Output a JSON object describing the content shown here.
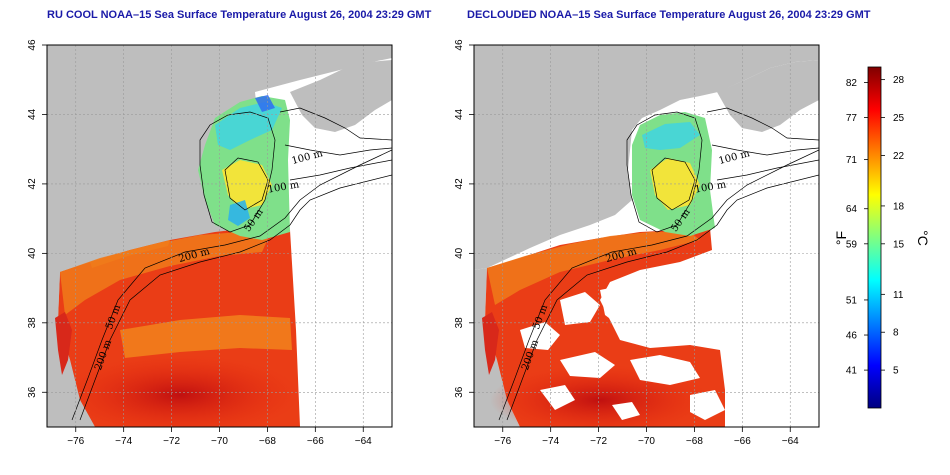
{
  "maps": [
    {
      "title": "RU COOL NOAA–15 Sea Surface Temperature August 26, 2004 23:29 GMT",
      "variant": "full"
    },
    {
      "title": "DECLOUDED NOAA–15 Sea Surface Temperature August 26, 2004 23:29 GMT",
      "variant": "declouded"
    }
  ],
  "axes": {
    "lon_ticks": [
      "−76",
      "−74",
      "−72",
      "−70",
      "−68",
      "−66",
      "−64"
    ],
    "lat_ticks": [
      "46",
      "44",
      "42",
      "40",
      "38",
      "36"
    ],
    "lon_range": [
      -77.2,
      -62.8
    ],
    "lat_range": [
      35.0,
      46.0
    ]
  },
  "contour_labels": {
    "map1": [
      "100 m",
      "100 m",
      "50 m",
      "200 m",
      "50 m",
      "200 m"
    ],
    "map2": [
      "100 m",
      "100 m",
      "50 m",
      "200 m",
      "50 m",
      "200 m"
    ]
  },
  "colorbar": {
    "unit_left": "°F",
    "unit_right": "°C",
    "fahrenheit_ticks": [
      "82",
      "77",
      "71",
      "64",
      "59",
      "51",
      "46",
      "41"
    ],
    "celsius_ticks": [
      "28",
      "25",
      "22",
      "18",
      "15",
      "11",
      "8",
      "5"
    ],
    "range_c": [
      2,
      29
    ],
    "colors": [
      "#000080",
      "#0000ff",
      "#0080ff",
      "#00ffff",
      "#80ff80",
      "#ffff00",
      "#ff8000",
      "#ff0000",
      "#800000"
    ]
  }
}
